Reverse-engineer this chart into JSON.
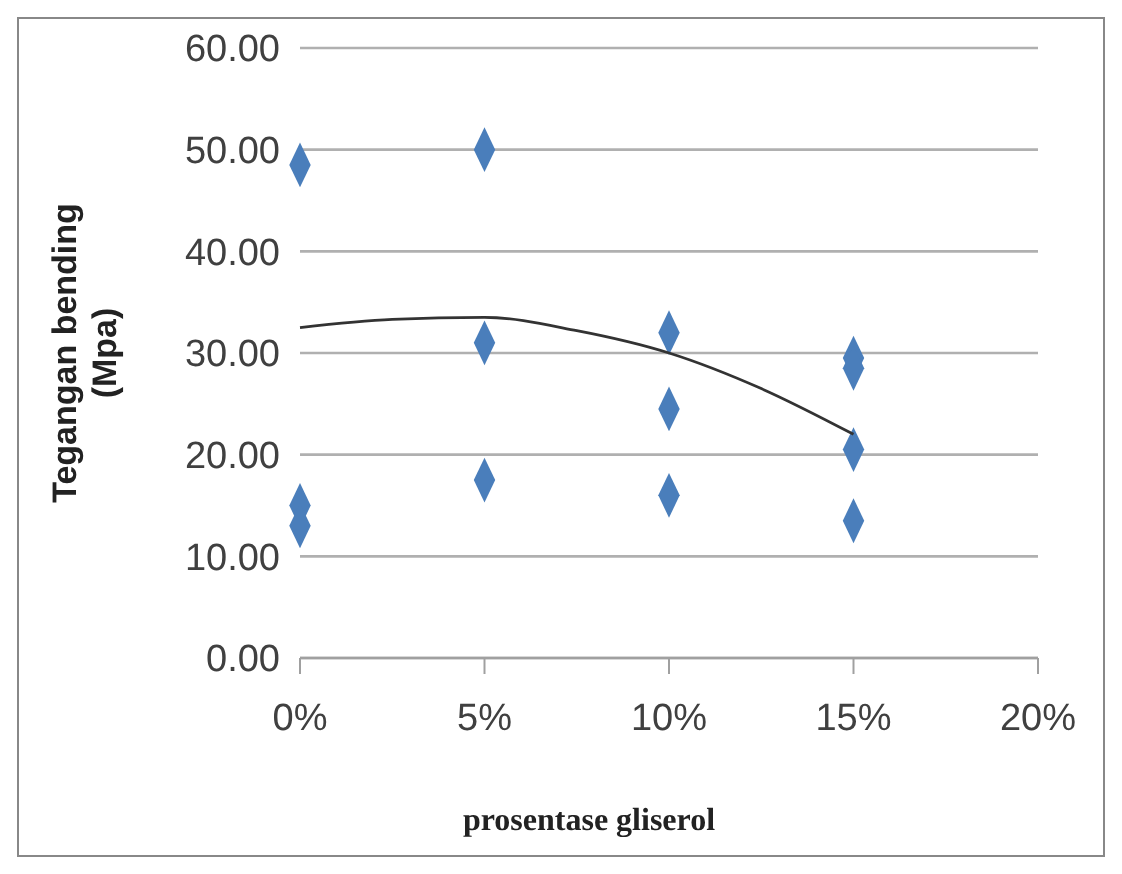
{
  "chart_data": {
    "type": "scatter",
    "xlabel": "prosentase gliserol",
    "ylabel": "Tegangan bending (Mpa)",
    "xlim": [
      0,
      20
    ],
    "ylim": [
      0,
      60
    ],
    "xticks": [
      {
        "value": 0,
        "label": "0%"
      },
      {
        "value": 5,
        "label": "5%"
      },
      {
        "value": 10,
        "label": "10%"
      },
      {
        "value": 15,
        "label": "15%"
      },
      {
        "value": 20,
        "label": "20%"
      }
    ],
    "yticks": [
      {
        "value": 0,
        "label": "0.00"
      },
      {
        "value": 10,
        "label": "10.00"
      },
      {
        "value": 20,
        "label": "20.00"
      },
      {
        "value": 30,
        "label": "30.00"
      },
      {
        "value": 40,
        "label": "40.00"
      },
      {
        "value": 50,
        "label": "50.00"
      },
      {
        "value": 60,
        "label": "60.00"
      }
    ],
    "grid": "y",
    "marker": "diamond",
    "series": [
      {
        "color": "#4a7ebb",
        "x": [
          0,
          0,
          0,
          5,
          5,
          5,
          10,
          10,
          10,
          15,
          15,
          15,
          15
        ],
        "values": [
          48.5,
          15,
          13,
          50,
          31,
          17.5,
          32,
          24.5,
          16,
          29.5,
          28.5,
          20.5,
          13.5
        ]
      },
      {
        "type": "line",
        "color": "#333333",
        "marker": "none",
        "x": [
          0,
          2.5,
          5,
          7.5,
          10,
          12.5,
          15
        ],
        "values": [
          32.5,
          33.3,
          33.5,
          32.2,
          30,
          26.5,
          22
        ]
      }
    ]
  }
}
